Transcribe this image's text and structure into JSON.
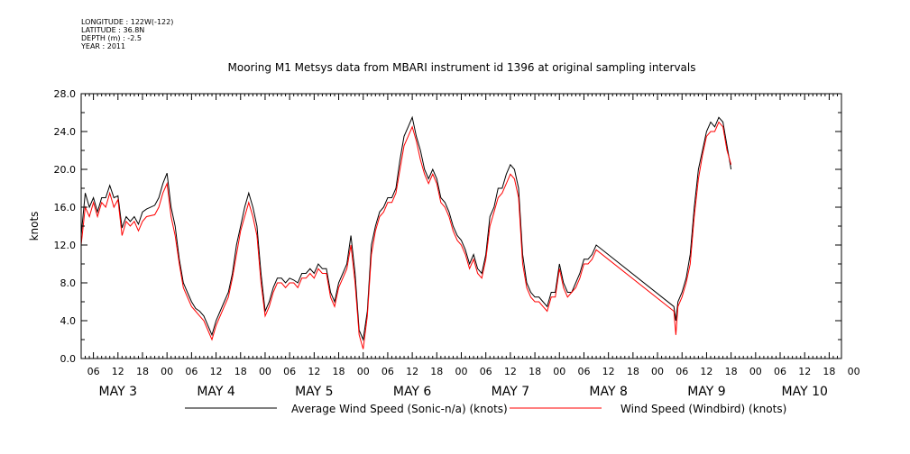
{
  "header": {
    "lines": [
      "LONGITUDE : 122W(-122)",
      "LATITUDE : 36.8N",
      "DEPTH (m) : -2.5",
      "YEAR : 2011"
    ]
  },
  "chart_data": {
    "type": "line",
    "title": "Mooring M1 Metsys data from MBARI instrument id 1396 at original sampling intervals",
    "ylabel": "knots",
    "xlabel": "",
    "ylim": [
      0,
      28
    ],
    "y_ticks": [
      "0.0",
      "4.0",
      "8.0",
      "12.0",
      "16.0",
      "20.0",
      "24.0",
      "28.0"
    ],
    "xlim_hours": [
      3,
      189
    ],
    "hour_ticks": [
      "06",
      "12",
      "18",
      "00",
      "06",
      "12",
      "18",
      "00",
      "06",
      "12",
      "18",
      "00",
      "06",
      "12",
      "18",
      "00",
      "06",
      "12",
      "18",
      "00",
      "06",
      "12",
      "18",
      "00",
      "06",
      "12",
      "18",
      "00",
      "06",
      "12",
      "18",
      "00"
    ],
    "day_labels": [
      "MAY 3",
      "MAY 4",
      "MAY 5",
      "MAY 6",
      "MAY 7",
      "MAY 8",
      "MAY 9",
      "MAY 10"
    ],
    "legend_position": "bottom",
    "series": [
      {
        "name": "Average Wind Speed (Sonic-n/a) (knots)",
        "color": "#000000",
        "points": [
          [
            3,
            13
          ],
          [
            4,
            17.5
          ],
          [
            5,
            16
          ],
          [
            6,
            17
          ],
          [
            7,
            15.5
          ],
          [
            8,
            17
          ],
          [
            9,
            17
          ],
          [
            10,
            18.3
          ],
          [
            11,
            17
          ],
          [
            12,
            17.2
          ],
          [
            13,
            13.8
          ],
          [
            14,
            15
          ],
          [
            15,
            14.5
          ],
          [
            16,
            15
          ],
          [
            17,
            14.2
          ],
          [
            18,
            15.5
          ],
          [
            19,
            15.8
          ],
          [
            21,
            16.2
          ],
          [
            22,
            17
          ],
          [
            23,
            18.5
          ],
          [
            24,
            19.6
          ],
          [
            25,
            16
          ],
          [
            26,
            14
          ],
          [
            27,
            10.5
          ],
          [
            28,
            8
          ],
          [
            29,
            7
          ],
          [
            30,
            6
          ],
          [
            31,
            5.3
          ],
          [
            32,
            5
          ],
          [
            33,
            4.5
          ],
          [
            34,
            3.5
          ],
          [
            35,
            2.5
          ],
          [
            36,
            4
          ],
          [
            37,
            5
          ],
          [
            38,
            6
          ],
          [
            39,
            7
          ],
          [
            40,
            9
          ],
          [
            41,
            12
          ],
          [
            42,
            14
          ],
          [
            43,
            16
          ],
          [
            44,
            17.5
          ],
          [
            45,
            16
          ],
          [
            46,
            14
          ],
          [
            47,
            9
          ],
          [
            48,
            5
          ],
          [
            49,
            6
          ],
          [
            50,
            7.5
          ],
          [
            51,
            8.5
          ],
          [
            52,
            8.5
          ],
          [
            53,
            8
          ],
          [
            54,
            8.5
          ],
          [
            55,
            8.3
          ],
          [
            56,
            8
          ],
          [
            57,
            9
          ],
          [
            58,
            9
          ],
          [
            59,
            9.5
          ],
          [
            60,
            9
          ],
          [
            61,
            10
          ],
          [
            62,
            9.5
          ],
          [
            63,
            9.5
          ],
          [
            64,
            7
          ],
          [
            65,
            6
          ],
          [
            66,
            8
          ],
          [
            67,
            9
          ],
          [
            68,
            10
          ],
          [
            69,
            13
          ],
          [
            70,
            9
          ],
          [
            71,
            3
          ],
          [
            72,
            2
          ],
          [
            73,
            5
          ],
          [
            74,
            12
          ],
          [
            75,
            14
          ],
          [
            76,
            15.5
          ],
          [
            77,
            16
          ],
          [
            78,
            17
          ],
          [
            79,
            17
          ],
          [
            80,
            18
          ],
          [
            81,
            21
          ],
          [
            82,
            23.5
          ],
          [
            83,
            24.5
          ],
          [
            84,
            25.5
          ],
          [
            85,
            23.5
          ],
          [
            86,
            22
          ],
          [
            87,
            20
          ],
          [
            88,
            19
          ],
          [
            89,
            20
          ],
          [
            90,
            19
          ],
          [
            91,
            17
          ],
          [
            92,
            16.5
          ],
          [
            93,
            15.5
          ],
          [
            94,
            14
          ],
          [
            95,
            13
          ],
          [
            96,
            12.5
          ],
          [
            97,
            11.5
          ],
          [
            98,
            10
          ],
          [
            99,
            11
          ],
          [
            100,
            9.5
          ],
          [
            101,
            9
          ],
          [
            102,
            11
          ],
          [
            103,
            15
          ],
          [
            104,
            16
          ],
          [
            105,
            18
          ],
          [
            106,
            18
          ],
          [
            107,
            19.5
          ],
          [
            108,
            20.5
          ],
          [
            109,
            20
          ],
          [
            110,
            18
          ],
          [
            111,
            11
          ],
          [
            112,
            8
          ],
          [
            113,
            7
          ],
          [
            114,
            6.5
          ],
          [
            115,
            6.5
          ],
          [
            116,
            6
          ],
          [
            117,
            5.5
          ],
          [
            118,
            7
          ],
          [
            119,
            7
          ],
          [
            120,
            10
          ],
          [
            121,
            8
          ],
          [
            122,
            7
          ],
          [
            123,
            7
          ],
          [
            124,
            8
          ],
          [
            125,
            9
          ],
          [
            126,
            10.5
          ],
          [
            127,
            10.5
          ],
          [
            128,
            11
          ],
          [
            129,
            12
          ],
          [
            148,
            5.5
          ],
          [
            148.5,
            4
          ],
          [
            149,
            6
          ],
          [
            150,
            7
          ],
          [
            151,
            8.5
          ],
          [
            152,
            11
          ],
          [
            153,
            16
          ],
          [
            154,
            20
          ],
          [
            155,
            22
          ],
          [
            156,
            24
          ],
          [
            157,
            25
          ],
          [
            158,
            24.5
          ],
          [
            159,
            25.5
          ],
          [
            160,
            25
          ],
          [
            161,
            22.5
          ],
          [
            162,
            20
          ]
        ]
      },
      {
        "name": "Wind Speed (Windbird) (knots)",
        "color": "#ff0000",
        "points": [
          [
            3,
            12
          ],
          [
            4,
            16
          ],
          [
            5,
            15
          ],
          [
            6,
            16.5
          ],
          [
            7,
            15
          ],
          [
            8,
            16.5
          ],
          [
            9,
            16
          ],
          [
            10,
            17.5
          ],
          [
            11,
            16
          ],
          [
            12,
            16.8
          ],
          [
            13,
            13
          ],
          [
            14,
            14.5
          ],
          [
            15,
            14
          ],
          [
            16,
            14.5
          ],
          [
            17,
            13.5
          ],
          [
            18,
            14.5
          ],
          [
            19,
            15
          ],
          [
            21,
            15.2
          ],
          [
            22,
            16
          ],
          [
            23,
            17.5
          ],
          [
            24,
            18.5
          ],
          [
            25,
            15
          ],
          [
            26,
            13
          ],
          [
            27,
            10
          ],
          [
            28,
            7.5
          ],
          [
            29,
            6.5
          ],
          [
            30,
            5.5
          ],
          [
            31,
            5
          ],
          [
            32,
            4.5
          ],
          [
            33,
            4
          ],
          [
            34,
            3
          ],
          [
            35,
            2
          ],
          [
            36,
            3.5
          ],
          [
            37,
            4.5
          ],
          [
            38,
            5.5
          ],
          [
            39,
            6.5
          ],
          [
            40,
            8.5
          ],
          [
            41,
            11
          ],
          [
            42,
            13.5
          ],
          [
            43,
            15
          ],
          [
            44,
            16.5
          ],
          [
            45,
            15
          ],
          [
            46,
            13
          ],
          [
            47,
            8
          ],
          [
            48,
            4.5
          ],
          [
            49,
            5.5
          ],
          [
            50,
            7
          ],
          [
            51,
            8
          ],
          [
            52,
            8
          ],
          [
            53,
            7.5
          ],
          [
            54,
            8
          ],
          [
            55,
            8
          ],
          [
            56,
            7.5
          ],
          [
            57,
            8.5
          ],
          [
            58,
            8.5
          ],
          [
            59,
            9
          ],
          [
            60,
            8.5
          ],
          [
            61,
            9.5
          ],
          [
            62,
            9
          ],
          [
            63,
            9
          ],
          [
            64,
            6.5
          ],
          [
            65,
            5.5
          ],
          [
            66,
            7.5
          ],
          [
            67,
            8.5
          ],
          [
            68,
            9.5
          ],
          [
            69,
            12
          ],
          [
            70,
            8
          ],
          [
            71,
            2.5
          ],
          [
            72,
            1
          ],
          [
            73,
            4.5
          ],
          [
            74,
            11
          ],
          [
            75,
            13.5
          ],
          [
            76,
            15
          ],
          [
            77,
            15.5
          ],
          [
            78,
            16.5
          ],
          [
            79,
            16.5
          ],
          [
            80,
            17.5
          ],
          [
            81,
            20
          ],
          [
            82,
            22.5
          ],
          [
            83,
            23.5
          ],
          [
            84,
            24.5
          ],
          [
            85,
            23
          ],
          [
            86,
            21
          ],
          [
            87,
            19.5
          ],
          [
            88,
            18.5
          ],
          [
            89,
            19.5
          ],
          [
            90,
            18.5
          ],
          [
            91,
            16.5
          ],
          [
            92,
            16
          ],
          [
            93,
            15
          ],
          [
            94,
            13.5
          ],
          [
            95,
            12.5
          ],
          [
            96,
            12
          ],
          [
            97,
            11
          ],
          [
            98,
            9.5
          ],
          [
            99,
            10.5
          ],
          [
            100,
            9
          ],
          [
            101,
            8.5
          ],
          [
            102,
            10.5
          ],
          [
            103,
            14
          ],
          [
            104,
            15.5
          ],
          [
            105,
            17
          ],
          [
            106,
            17.5
          ],
          [
            107,
            18.5
          ],
          [
            108,
            19.5
          ],
          [
            109,
            19
          ],
          [
            110,
            17
          ],
          [
            111,
            10
          ],
          [
            112,
            7.5
          ],
          [
            113,
            6.5
          ],
          [
            114,
            6
          ],
          [
            115,
            6
          ],
          [
            116,
            5.5
          ],
          [
            117,
            5
          ],
          [
            118,
            6.5
          ],
          [
            119,
            6.5
          ],
          [
            120,
            9.5
          ],
          [
            121,
            7.5
          ],
          [
            122,
            6.5
          ],
          [
            123,
            7
          ],
          [
            124,
            7.5
          ],
          [
            125,
            8.5
          ],
          [
            126,
            10
          ],
          [
            127,
            10
          ],
          [
            128,
            10.5
          ],
          [
            129,
            11.5
          ],
          [
            148,
            5
          ],
          [
            148.5,
            2.5
          ],
          [
            149,
            5.5
          ],
          [
            150,
            6.5
          ],
          [
            151,
            8
          ],
          [
            152,
            10
          ],
          [
            153,
            15
          ],
          [
            154,
            19
          ],
          [
            155,
            21.5
          ],
          [
            156,
            23.5
          ],
          [
            157,
            24
          ],
          [
            158,
            24
          ],
          [
            159,
            25
          ],
          [
            160,
            24.5
          ],
          [
            161,
            22
          ],
          [
            162,
            20.5
          ]
        ]
      }
    ]
  }
}
